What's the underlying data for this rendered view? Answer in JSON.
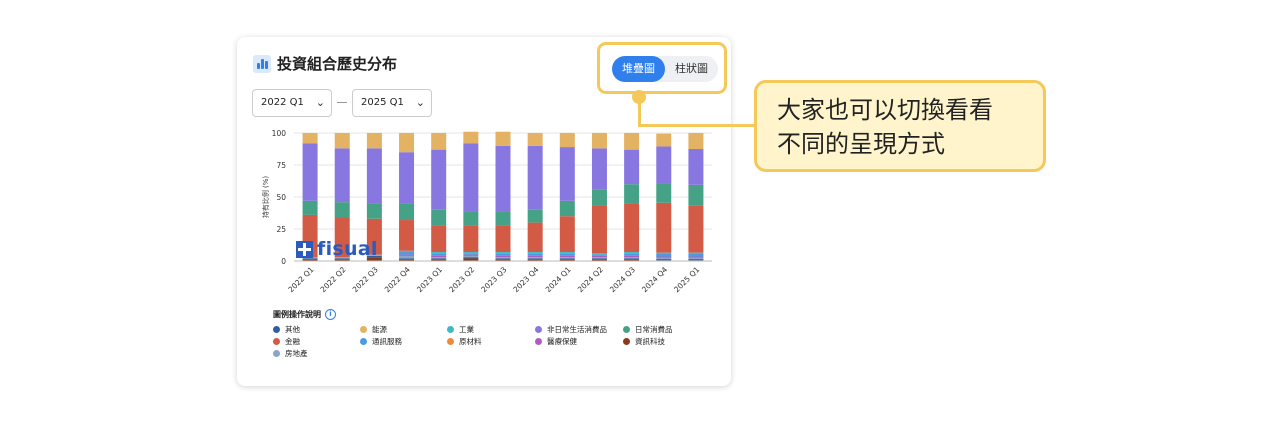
{
  "card": {
    "title": "投資組合歷史分布",
    "toggle": {
      "stacked": "堆疊圖",
      "bar": "柱狀圖"
    },
    "start_select": "2022 Q1",
    "end_select": "2025 Q1",
    "legend_title": "圖例操作說明",
    "watermark": "fisual"
  },
  "callout": {
    "line1": "大家也可以切換看看",
    "line2": "不同的呈現方式"
  },
  "chart_data": {
    "type": "bar",
    "stacked": true,
    "ylabel": "持有比例 (%)",
    "ylim": [
      0,
      100
    ],
    "yticks": [
      0,
      25,
      50,
      75,
      100
    ],
    "categories": [
      "2022 Q1",
      "2022 Q2",
      "2022 Q3",
      "2022 Q4",
      "2023 Q1",
      "2023 Q2",
      "2023 Q3",
      "2023 Q4",
      "2024 Q1",
      "2024 Q2",
      "2024 Q3",
      "2024 Q4",
      "2025 Q1"
    ],
    "series": [
      {
        "name": "資訊科技",
        "color": "#8b3a1a",
        "values": [
          1,
          1,
          3,
          1,
          1,
          2,
          1,
          1,
          1,
          1,
          1,
          0.5,
          0.5
        ]
      },
      {
        "name": "其他",
        "color": "#2f5f9e",
        "values": [
          1,
          1,
          1,
          1,
          1,
          1,
          1,
          1,
          1,
          1,
          1,
          1,
          1
        ]
      },
      {
        "name": "房地產",
        "color": "#8aa5c8",
        "values": [
          1,
          1,
          1,
          2,
          1,
          1,
          1,
          1,
          1,
          1,
          1,
          1,
          1
        ]
      },
      {
        "name": "原材料",
        "color": "#f08a3a",
        "values": [
          0,
          0,
          0,
          0,
          0,
          0,
          0,
          0,
          0,
          0,
          0,
          0,
          0
        ]
      },
      {
        "name": "醫療保健",
        "color": "#b05cc0",
        "values": [
          0,
          0,
          0,
          1,
          1,
          1,
          1,
          1,
          1,
          1,
          1,
          1,
          1
        ]
      },
      {
        "name": "通訊服務",
        "color": "#4c9be0",
        "values": [
          0,
          0,
          0,
          2,
          2,
          1,
          2,
          2,
          2,
          1,
          2,
          2,
          2
        ]
      },
      {
        "name": "工業",
        "color": "#3fb8c8",
        "values": [
          0,
          0,
          0,
          1,
          1,
          1,
          1,
          1,
          1,
          1,
          1,
          1,
          1
        ]
      },
      {
        "name": "金融",
        "color": "#d35a45",
        "values": [
          33,
          31,
          28,
          24,
          21,
          21,
          21,
          23,
          28,
          37,
          38,
          39,
          37
        ]
      },
      {
        "name": "日常消費品",
        "color": "#46a287",
        "values": [
          11,
          12,
          12,
          13,
          12,
          11,
          11,
          10,
          12,
          13,
          15,
          15,
          16
        ]
      },
      {
        "name": "非日常生活消費品",
        "color": "#8877e0",
        "values": [
          45,
          42,
          43,
          40,
          47,
          53,
          51,
          50,
          42,
          32,
          27,
          29,
          28
        ]
      },
      {
        "name": "能源",
        "color": "#e3b262",
        "values": [
          8,
          12,
          12,
          15,
          13,
          9,
          11,
          10,
          11,
          12,
          13,
          10,
          12.5
        ]
      }
    ]
  },
  "legend": [
    {
      "label": "其他",
      "color": "#2f5f9e"
    },
    {
      "label": "能源",
      "color": "#e3b262"
    },
    {
      "label": "工業",
      "color": "#3fb8c8"
    },
    {
      "label": "非日常生活消費品",
      "color": "#8877e0"
    },
    {
      "label": "日常消費品",
      "color": "#46a287"
    },
    {
      "label": "金融",
      "color": "#d35a45"
    },
    {
      "label": "通訊服務",
      "color": "#4c9be0"
    },
    {
      "label": "原材料",
      "color": "#f08a3a"
    },
    {
      "label": "醫療保健",
      "color": "#b05cc0"
    },
    {
      "label": "資訊科技",
      "color": "#8b3a1a"
    },
    {
      "label": "房地產",
      "color": "#8aa5c8"
    }
  ]
}
